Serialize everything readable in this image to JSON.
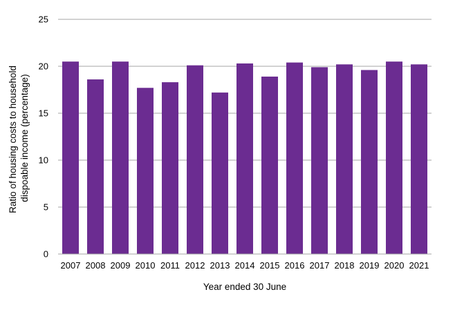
{
  "chart_data": {
    "type": "bar",
    "categories": [
      "2007",
      "2008",
      "2009",
      "2010",
      "2011",
      "2012",
      "2013",
      "2014",
      "2015",
      "2016",
      "2017",
      "2018",
      "2019",
      "2020",
      "2021"
    ],
    "values": [
      20.5,
      18.6,
      20.5,
      17.7,
      18.3,
      20.1,
      17.2,
      20.3,
      18.9,
      20.4,
      19.9,
      20.2,
      19.6,
      20.5,
      20.2
    ],
    "xlabel": "Year ended 30 June",
    "ylabel_lines": [
      "Ratio of housing costs to household",
      "dispoable  income (percentage)"
    ],
    "ylim": [
      0,
      25
    ],
    "yticks": [
      0,
      5,
      10,
      15,
      20,
      25
    ],
    "grid": true,
    "legend": "none",
    "bar_color": "#6b2c91",
    "grid_color": "#a6a6a6"
  }
}
